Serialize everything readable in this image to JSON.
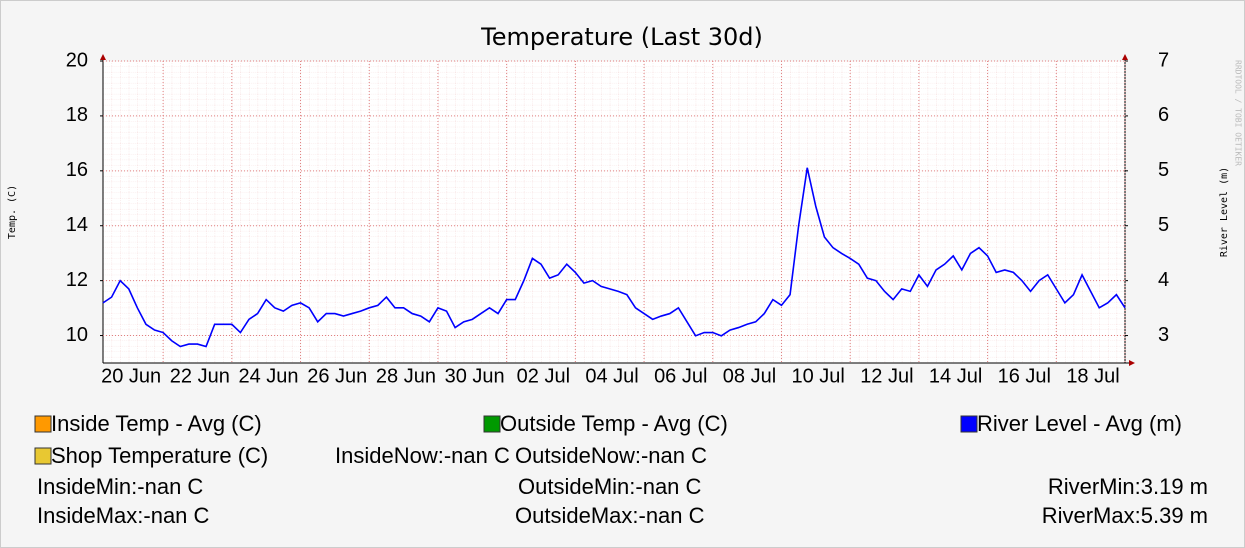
{
  "chart_data": {
    "type": "line",
    "title": "Temperature (Last 30d)",
    "y_label": "Temp. (C)",
    "y2_label": "River Level (m)",
    "watermark": "RRDTOOL / TOBI OETIKER",
    "grid": true,
    "ylim": [
      9,
      20
    ],
    "yticks": [
      10,
      12,
      14,
      16,
      18,
      20
    ],
    "y2lim": [
      3,
      6.6667
    ],
    "y2ticks": [
      {
        "value": 3.3333,
        "label": "3"
      },
      4,
      {
        "value": 4.6667,
        "label": "5"
      },
      {
        "value": 5.3333,
        "label": "5"
      },
      6,
      {
        "value": 6.6667,
        "label": "7"
      }
    ],
    "categories": [
      null,
      null,
      null,
      null,
      null,
      null,
      null,
      "20 Jun",
      null,
      null,
      null,
      null,
      null,
      null,
      null,
      "22 Jun",
      null,
      null,
      null,
      null,
      null,
      null,
      null,
      "24 Jun",
      null,
      null,
      null,
      null,
      null,
      null,
      null,
      "26 Jun",
      null,
      null,
      null,
      null,
      null,
      null,
      null,
      "28 Jun",
      null,
      null,
      null,
      null,
      null,
      null,
      null,
      "30 Jun",
      null,
      null,
      null,
      null,
      null,
      null,
      null,
      "02 Jul",
      null,
      null,
      null,
      null,
      null,
      null,
      null,
      "04 Jul",
      null,
      null,
      null,
      null,
      null,
      null,
      null,
      "06 Jul",
      null,
      null,
      null,
      null,
      null,
      null,
      null,
      "08 Jul",
      null,
      null,
      null,
      null,
      null,
      null,
      null,
      "10 Jul",
      null,
      null,
      null,
      null,
      null,
      null,
      null,
      "12 Jul",
      null,
      null,
      null,
      null,
      null,
      null,
      null,
      "14 Jul",
      null,
      null,
      null,
      null,
      null,
      null,
      null,
      "16 Jul",
      null,
      null,
      null,
      null,
      null,
      null,
      null,
      "18 Jul"
    ],
    "series": [
      {
        "name": "Inside Temp - Avg (C)",
        "color": "#ff9900"
      },
      {
        "name": "Outside Temp - Avg (C)",
        "color": "#009900"
      },
      {
        "name": "River Level - Avg (m)",
        "color": "#0000ff",
        "axis": "y2",
        "values": [
          3.73,
          3.8,
          4.0,
          3.9,
          3.67,
          3.47,
          3.4,
          3.37,
          3.27,
          3.2,
          3.23,
          3.23,
          3.2,
          3.47,
          3.47,
          3.47,
          3.37,
          3.53,
          3.6,
          3.77,
          3.67,
          3.63,
          3.7,
          3.73,
          3.67,
          3.5,
          3.6,
          3.6,
          3.57,
          3.6,
          3.63,
          3.67,
          3.7,
          3.8,
          3.67,
          3.67,
          3.6,
          3.57,
          3.5,
          3.67,
          3.63,
          3.43,
          3.5,
          3.53,
          3.6,
          3.67,
          3.6,
          3.77,
          3.77,
          4.0,
          4.27,
          4.2,
          4.03,
          4.07,
          4.2,
          4.1,
          3.97,
          4.0,
          3.93,
          3.9,
          3.87,
          3.83,
          3.67,
          3.6,
          3.53,
          3.57,
          3.6,
          3.67,
          3.5,
          3.33,
          3.37,
          3.37,
          3.33,
          3.4,
          3.43,
          3.47,
          3.5,
          3.6,
          3.77,
          3.7,
          3.83,
          4.67,
          5.37,
          4.9,
          4.53,
          4.4,
          4.33,
          4.27,
          4.2,
          4.03,
          4.0,
          3.87,
          3.77,
          3.9,
          3.87,
          4.07,
          3.93,
          4.13,
          4.2,
          4.3,
          4.13,
          4.33,
          4.4,
          4.3,
          4.1,
          4.13,
          4.1,
          4.0,
          3.87,
          4.0,
          4.07,
          3.9,
          3.73,
          3.83,
          4.07,
          3.87,
          3.67,
          3.73,
          3.83,
          3.67
        ]
      },
      {
        "name": "Shop Temperature (C)",
        "color": "#e8c832"
      }
    ],
    "annotations": [
      "InsideNow:-nan C",
      "OutsideNow:-nan C",
      "InsideMin:-nan C",
      "OutsideMin:-nan C",
      "RiverMin:3.19 m",
      "InsideMax:-nan C",
      "OutsideMax:-nan C",
      "RiverMax:5.39 m"
    ]
  }
}
